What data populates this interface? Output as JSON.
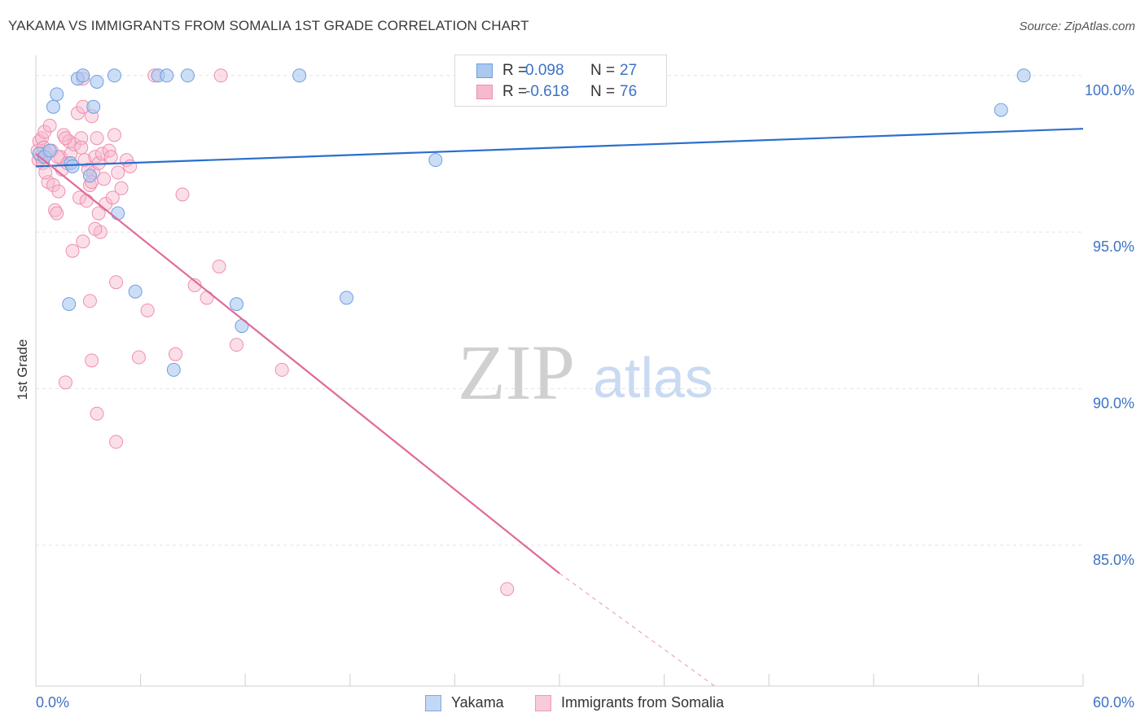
{
  "header": {
    "title": "YAKAMA VS IMMIGRANTS FROM SOMALIA 1ST GRADE CORRELATION CHART",
    "source": "Source: ZipAtlas.com"
  },
  "watermark": {
    "zip": "ZIP",
    "atlas": "atlas"
  },
  "legend": {
    "rows": [
      {
        "r_label": "R =",
        "r_value": "0.098",
        "n_label": "N =",
        "n_value": "27"
      },
      {
        "r_label": "R =",
        "r_value": "-0.618",
        "n_label": "N =",
        "n_value": "76"
      }
    ]
  },
  "bottom_legend": [
    "Yakama",
    "Immigrants from Somalia"
  ],
  "colors": {
    "yakama_fill": "#aac8f0",
    "yakama_stroke": "#6f9fe0",
    "yakama_line": "#2a6fcc",
    "somalia_fill": "#f6b9cd",
    "somalia_stroke": "#ee8fb0",
    "somalia_line": "#e06a9a",
    "grid": "#e4e4e4",
    "axis_text": "#3d72c4"
  },
  "chart_data": {
    "type": "scatter",
    "title": "YAKAMA VS IMMIGRANTS FROM SOMALIA 1ST GRADE CORRELATION CHART",
    "xlabel": "",
    "ylabel": "1st Grade",
    "xlim": [
      0,
      60
    ],
    "ylim": [
      80.5,
      100.8
    ],
    "x_tick_labels": [
      "0.0%",
      "60.0%"
    ],
    "y_ticks": [
      85,
      90,
      95,
      100
    ],
    "y_tick_labels": [
      "85.0%",
      "90.0%",
      "95.0%",
      "100.0%"
    ],
    "series": [
      {
        "name": "Yakama",
        "R": 0.098,
        "N": 27,
        "trend": {
          "x": [
            0,
            60
          ],
          "y": [
            97.1,
            98.3
          ]
        },
        "points": [
          [
            0.2,
            97.5
          ],
          [
            0.5,
            97.4
          ],
          [
            1.0,
            99.0
          ],
          [
            1.2,
            99.4
          ],
          [
            2.4,
            99.9
          ],
          [
            2.7,
            100.0
          ],
          [
            3.3,
            99.0
          ],
          [
            3.5,
            99.8
          ],
          [
            4.5,
            100.0
          ],
          [
            7.0,
            100.0
          ],
          [
            7.5,
            100.0
          ],
          [
            8.7,
            100.0
          ],
          [
            15.1,
            100.0
          ],
          [
            56.6,
            100.0
          ],
          [
            55.3,
            98.9
          ],
          [
            22.9,
            97.3
          ],
          [
            2.0,
            97.2
          ],
          [
            3.1,
            96.8
          ],
          [
            4.7,
            95.6
          ],
          [
            1.9,
            92.7
          ],
          [
            5.7,
            93.1
          ],
          [
            11.5,
            92.7
          ],
          [
            11.8,
            92.0
          ],
          [
            17.8,
            92.9
          ],
          [
            7.9,
            90.6
          ],
          [
            0.8,
            97.6
          ],
          [
            2.1,
            97.1
          ]
        ]
      },
      {
        "name": "Immigrants from Somalia",
        "R": -0.618,
        "N": 76,
        "trend": {
          "x": [
            0,
            30.0
          ],
          "y": [
            97.5,
            84.1
          ]
        },
        "trend_extension": {
          "x": [
            30.0,
            38.9
          ],
          "y": [
            84.1,
            80.5
          ]
        },
        "points": [
          [
            0.1,
            97.6
          ],
          [
            0.15,
            97.3
          ],
          [
            0.2,
            97.9
          ],
          [
            0.3,
            97.4
          ],
          [
            0.35,
            98.0
          ],
          [
            0.4,
            97.2
          ],
          [
            0.45,
            97.7
          ],
          [
            0.5,
            98.2
          ],
          [
            0.6,
            97.5
          ],
          [
            0.7,
            96.6
          ],
          [
            0.8,
            98.4
          ],
          [
            0.9,
            97.6
          ],
          [
            1.0,
            96.5
          ],
          [
            1.1,
            95.7
          ],
          [
            1.2,
            95.6
          ],
          [
            1.3,
            96.3
          ],
          [
            1.4,
            97.4
          ],
          [
            1.5,
            97.0
          ],
          [
            1.6,
            98.1
          ],
          [
            1.8,
            97.2
          ],
          [
            1.9,
            97.9
          ],
          [
            2.0,
            97.5
          ],
          [
            2.2,
            97.8
          ],
          [
            2.4,
            98.8
          ],
          [
            2.5,
            96.1
          ],
          [
            2.6,
            98.0
          ],
          [
            2.7,
            99.0
          ],
          [
            2.8,
            97.3
          ],
          [
            3.0,
            97.0
          ],
          [
            3.1,
            96.5
          ],
          [
            3.2,
            98.7
          ],
          [
            3.3,
            96.9
          ],
          [
            3.4,
            97.4
          ],
          [
            3.5,
            98.0
          ],
          [
            3.6,
            97.2
          ],
          [
            3.7,
            95.0
          ],
          [
            3.8,
            97.5
          ],
          [
            3.9,
            96.7
          ],
          [
            4.0,
            95.9
          ],
          [
            4.2,
            97.6
          ],
          [
            4.4,
            96.1
          ],
          [
            4.5,
            98.1
          ],
          [
            4.7,
            96.9
          ],
          [
            4.9,
            96.4
          ],
          [
            5.2,
            97.3
          ],
          [
            5.4,
            97.1
          ],
          [
            2.1,
            94.4
          ],
          [
            2.7,
            94.7
          ],
          [
            3.4,
            95.1
          ],
          [
            3.2,
            96.6
          ],
          [
            2.6,
            97.7
          ],
          [
            4.3,
            97.4
          ],
          [
            1.7,
            98.0
          ],
          [
            2.9,
            96.0
          ],
          [
            8.4,
            96.2
          ],
          [
            10.5,
            93.9
          ],
          [
            9.1,
            93.3
          ],
          [
            9.8,
            92.9
          ],
          [
            6.4,
            92.5
          ],
          [
            4.6,
            93.4
          ],
          [
            3.1,
            92.8
          ],
          [
            5.9,
            91.0
          ],
          [
            8.0,
            91.1
          ],
          [
            11.5,
            91.4
          ],
          [
            14.1,
            90.6
          ],
          [
            3.2,
            90.9
          ],
          [
            1.7,
            90.2
          ],
          [
            3.5,
            89.2
          ],
          [
            4.6,
            88.3
          ],
          [
            27.0,
            83.6
          ],
          [
            6.8,
            100.0
          ],
          [
            10.6,
            100.0
          ],
          [
            2.7,
            99.9
          ],
          [
            0.55,
            96.9
          ],
          [
            1.25,
            97.4
          ],
          [
            3.6,
            95.6
          ]
        ]
      }
    ]
  }
}
